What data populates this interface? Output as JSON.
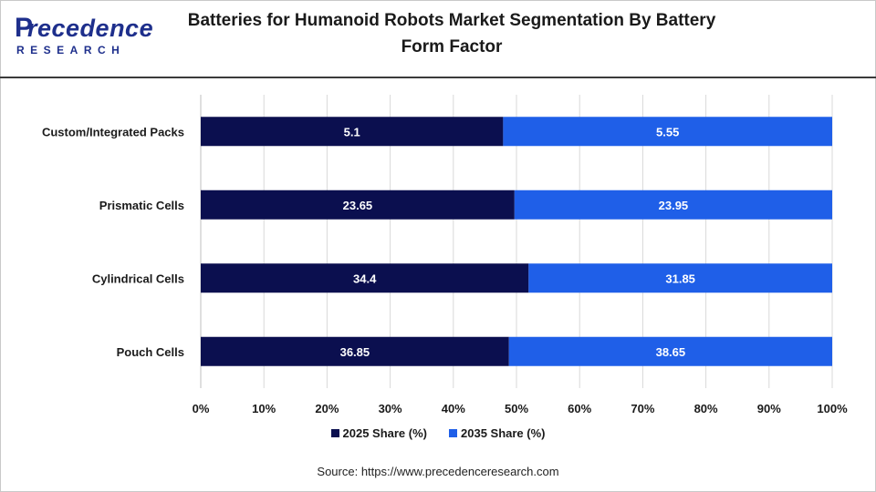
{
  "brand": {
    "logo_main": "recedence",
    "logo_initial": "P",
    "logo_sub": "RESEARCH"
  },
  "header": {
    "title": "Batteries for Humanoid Robots Market Segmentation By Battery Form Factor"
  },
  "source": "Source: https://www.precedenceresearch.com",
  "colors": {
    "series_2025": "#0b0f4f",
    "series_2035": "#1f5fe8",
    "brand": "#1e2f8c"
  },
  "chart_data": {
    "type": "bar",
    "orientation": "horizontal",
    "stacked": "percent",
    "title": "Batteries for Humanoid Robots Market Segmentation By Battery Form Factor",
    "categories": [
      "Custom/Integrated Packs",
      "Prismatic Cells",
      "Cylindrical Cells",
      "Pouch Cells"
    ],
    "series": [
      {
        "name": "2025 Share (%)",
        "values": [
          5.1,
          23.65,
          34.4,
          36.85
        ]
      },
      {
        "name": "2035 Share (%)",
        "values": [
          5.55,
          23.95,
          31.85,
          38.65
        ]
      }
    ],
    "x_ticks": [
      "0%",
      "10%",
      "20%",
      "30%",
      "40%",
      "50%",
      "60%",
      "70%",
      "80%",
      "90%",
      "100%"
    ],
    "xlim": [
      0,
      100
    ],
    "grid": "vertical",
    "legend": "bottom"
  }
}
